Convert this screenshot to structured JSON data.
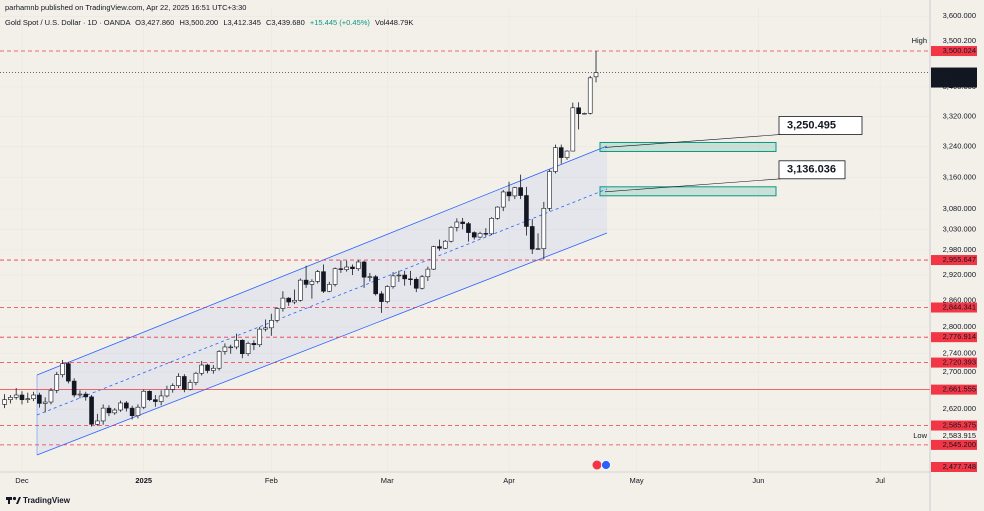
{
  "header": {
    "attribution": "parhamnb published on TradingView.com, Apr 22, 2025 16:51 UTC+3:30",
    "symbol": "Gold Spot / U.S. Dollar · 1D · OANDA",
    "open": "O3,427.860",
    "high": "H3,500.200",
    "low": "L3,412.345",
    "close": "C3,439.680",
    "change": "+15.445 (+0.45%)",
    "volume": "Vol448.79K"
  },
  "footer": {
    "brand": "TradingView"
  },
  "chart_data": {
    "type": "candlestick",
    "log_scale": true,
    "up_color": "#ffffff",
    "down_color": "#131722",
    "level_color": "#f23645",
    "zone_color": "#089981",
    "ylim": [
      2490,
      3624
    ],
    "yticks": [
      {
        "value": 3600,
        "label": "3,600.000"
      },
      {
        "value": 3400,
        "label": "3,400.000"
      },
      {
        "value": 3320,
        "label": "3,320.000"
      },
      {
        "value": 3240,
        "label": "3,240.000"
      },
      {
        "value": 3160,
        "label": "3,160.000"
      },
      {
        "value": 3080,
        "label": "3,080.000"
      },
      {
        "value": 3030,
        "label": "3,030.000"
      },
      {
        "value": 2980,
        "label": "2,980.000"
      },
      {
        "value": 2920,
        "label": "2,920.000"
      },
      {
        "value": 2860,
        "label": "2,860.000"
      },
      {
        "value": 2800,
        "label": "2,800.000"
      },
      {
        "value": 2740,
        "label": "2,740.000"
      },
      {
        "value": 2700,
        "label": "2,700.000"
      },
      {
        "value": 2620,
        "label": "2,620.000"
      }
    ],
    "xlim": [
      -0.79,
      159.6
    ],
    "xticks": [
      {
        "value": 3,
        "label": "Dec"
      },
      {
        "value": 24,
        "label": "2025"
      },
      {
        "value": 46,
        "label": "Feb"
      },
      {
        "value": 66,
        "label": "Mar"
      },
      {
        "value": 87,
        "label": "Apr"
      },
      {
        "value": 109,
        "label": "May"
      },
      {
        "value": 130,
        "label": "Jun"
      },
      {
        "value": 151,
        "label": "Jul"
      }
    ],
    "ohlc": [
      [
        2630,
        2652,
        2622,
        2640
      ],
      [
        2640,
        2650,
        2632,
        2645
      ],
      [
        2645,
        2665,
        2640,
        2650
      ],
      [
        2650,
        2658,
        2630,
        2640
      ],
      [
        2640,
        2655,
        2633,
        2642
      ],
      [
        2642,
        2657,
        2637,
        2650
      ],
      [
        2650,
        2655,
        2623,
        2632
      ],
      [
        2632,
        2645,
        2613,
        2635
      ],
      [
        2635,
        2665,
        2630,
        2660
      ],
      [
        2660,
        2700,
        2654,
        2694
      ],
      [
        2694,
        2726,
        2688,
        2718
      ],
      [
        2718,
        2722,
        2675,
        2680
      ],
      [
        2680,
        2686,
        2645,
        2650
      ],
      [
        2650,
        2660,
        2643,
        2652
      ],
      [
        2652,
        2657,
        2638,
        2646
      ],
      [
        2646,
        2650,
        2583,
        2588
      ],
      [
        2588,
        2610,
        2585,
        2595
      ],
      [
        2595,
        2630,
        2587,
        2622
      ],
      [
        2622,
        2628,
        2605,
        2612
      ],
      [
        2612,
        2622,
        2608,
        2618
      ],
      [
        2618,
        2638,
        2614,
        2633
      ],
      [
        2633,
        2637,
        2615,
        2622
      ],
      [
        2622,
        2627,
        2598,
        2606
      ],
      [
        2606,
        2630,
        2600,
        2624
      ],
      [
        2624,
        2662,
        2620,
        2658
      ],
      [
        2658,
        2660,
        2637,
        2640
      ],
      [
        2640,
        2650,
        2625,
        2636
      ],
      [
        2636,
        2660,
        2628,
        2648
      ],
      [
        2648,
        2670,
        2645,
        2662
      ],
      [
        2662,
        2675,
        2655,
        2670
      ],
      [
        2670,
        2697,
        2665,
        2690
      ],
      [
        2690,
        2695,
        2656,
        2662
      ],
      [
        2662,
        2683,
        2660,
        2677
      ],
      [
        2677,
        2700,
        2671,
        2697
      ],
      [
        2697,
        2724,
        2692,
        2715
      ],
      [
        2715,
        2718,
        2697,
        2703
      ],
      [
        2703,
        2715,
        2696,
        2708
      ],
      [
        2708,
        2748,
        2703,
        2745
      ],
      [
        2745,
        2763,
        2738,
        2755
      ],
      [
        2755,
        2760,
        2740,
        2755
      ],
      [
        2755,
        2785,
        2750,
        2770
      ],
      [
        2770,
        2772,
        2730,
        2740
      ],
      [
        2740,
        2767,
        2735,
        2763
      ],
      [
        2763,
        2770,
        2748,
        2760
      ],
      [
        2760,
        2800,
        2755,
        2795
      ],
      [
        2795,
        2817,
        2790,
        2798
      ],
      [
        2798,
        2830,
        2780,
        2815
      ],
      [
        2815,
        2845,
        2810,
        2842
      ],
      [
        2842,
        2882,
        2835,
        2866
      ],
      [
        2866,
        2868,
        2848,
        2857
      ],
      [
        2857,
        2886,
        2852,
        2861
      ],
      [
        2861,
        2912,
        2858,
        2908
      ],
      [
        2908,
        2942,
        2890,
        2898
      ],
      [
        2898,
        2910,
        2865,
        2905
      ],
      [
        2905,
        2932,
        2900,
        2928
      ],
      [
        2928,
        2945,
        2878,
        2882
      ],
      [
        2882,
        2904,
        2880,
        2898
      ],
      [
        2898,
        2938,
        2893,
        2935
      ],
      [
        2935,
        2955,
        2925,
        2933
      ],
      [
        2933,
        2954,
        2928,
        2939
      ],
      [
        2939,
        2945,
        2920,
        2935
      ],
      [
        2935,
        2956,
        2930,
        2951
      ],
      [
        2951,
        2954,
        2890,
        2915
      ],
      [
        2915,
        2925,
        2905,
        2916
      ],
      [
        2916,
        2920,
        2872,
        2876
      ],
      [
        2876,
        2882,
        2832,
        2858
      ],
      [
        2858,
        2896,
        2854,
        2893
      ],
      [
        2893,
        2927,
        2888,
        2918
      ],
      [
        2918,
        2930,
        2904,
        2920
      ],
      [
        2920,
        2930,
        2895,
        2911
      ],
      [
        2911,
        2930,
        2896,
        2910
      ],
      [
        2910,
        2915,
        2880,
        2889
      ],
      [
        2889,
        2920,
        2886,
        2916
      ],
      [
        2916,
        2940,
        2906,
        2934
      ],
      [
        2934,
        2990,
        2932,
        2988
      ],
      [
        2988,
        3005,
        2978,
        2984
      ],
      [
        2984,
        3004,
        2982,
        3001
      ],
      [
        3001,
        3038,
        2998,
        3035
      ],
      [
        3035,
        3057,
        3025,
        3048
      ],
      [
        3048,
        3058,
        3030,
        3044
      ],
      [
        3044,
        3048,
        3000,
        3022
      ],
      [
        3022,
        3025,
        3005,
        3011
      ],
      [
        3011,
        3024,
        3008,
        3020
      ],
      [
        3020,
        3033,
        3012,
        3019
      ],
      [
        3019,
        3060,
        3016,
        3057
      ],
      [
        3057,
        3087,
        3054,
        3085
      ],
      [
        3085,
        3128,
        3075,
        3123
      ],
      [
        3123,
        3149,
        3100,
        3113
      ],
      [
        3113,
        3136,
        3105,
        3134
      ],
      [
        3134,
        3167,
        3105,
        3114
      ],
      [
        3114,
        3136,
        3015,
        3037
      ],
      [
        3037,
        3055,
        2970,
        2982
      ],
      [
        2982,
        3020,
        2980,
        2983
      ],
      [
        2983,
        3098,
        2957,
        3082
      ],
      [
        3082,
        3180,
        3075,
        3175
      ],
      [
        3175,
        3245,
        3170,
        3237
      ],
      [
        3237,
        3245,
        3195,
        3211
      ],
      [
        3211,
        3230,
        3205,
        3228
      ],
      [
        3228,
        3357,
        3228,
        3343
      ],
      [
        3343,
        3358,
        3285,
        3327
      ],
      [
        3327,
        3330,
        3325,
        3328
      ],
      [
        3328,
        3430,
        3325,
        3425
      ],
      [
        3427.86,
        3500.2,
        3412.345,
        3439.68
      ]
    ],
    "levels": [
      {
        "value": 3500.024,
        "label": "3,500.024",
        "style": "dashed"
      },
      {
        "value": 2955.647,
        "label": "2,955.647",
        "style": "dashed"
      },
      {
        "value": 2844.341,
        "label": "2,844.341",
        "style": "dashed"
      },
      {
        "value": 2776.914,
        "label": "2,776.914",
        "style": "dashed"
      },
      {
        "value": 2720.393,
        "label": "2,720.393",
        "style": "dashed"
      },
      {
        "value": 2661.555,
        "label": "2,661.555",
        "style": "solid"
      },
      {
        "value": 2585.375,
        "label": "2,585.375",
        "style": "dashed"
      },
      {
        "value": 2545.2,
        "label": "2,545.200",
        "style": "dashed"
      },
      {
        "value": 2477.748,
        "label": "2,477.748",
        "style": "dashed"
      }
    ],
    "zones": [
      {
        "value": 3250.495,
        "label": "3,250.495"
      },
      {
        "value": 3136.036,
        "label": "3,136.036"
      }
    ],
    "high": {
      "name": "High",
      "value": 3500.2,
      "label": "3,500.200"
    },
    "low": {
      "name": "Low",
      "value": 2583.915,
      "label": "2,583.915"
    },
    "last": {
      "value": 3439.68,
      "label": "3,439.680",
      "countdown": "07:38:48"
    }
  }
}
